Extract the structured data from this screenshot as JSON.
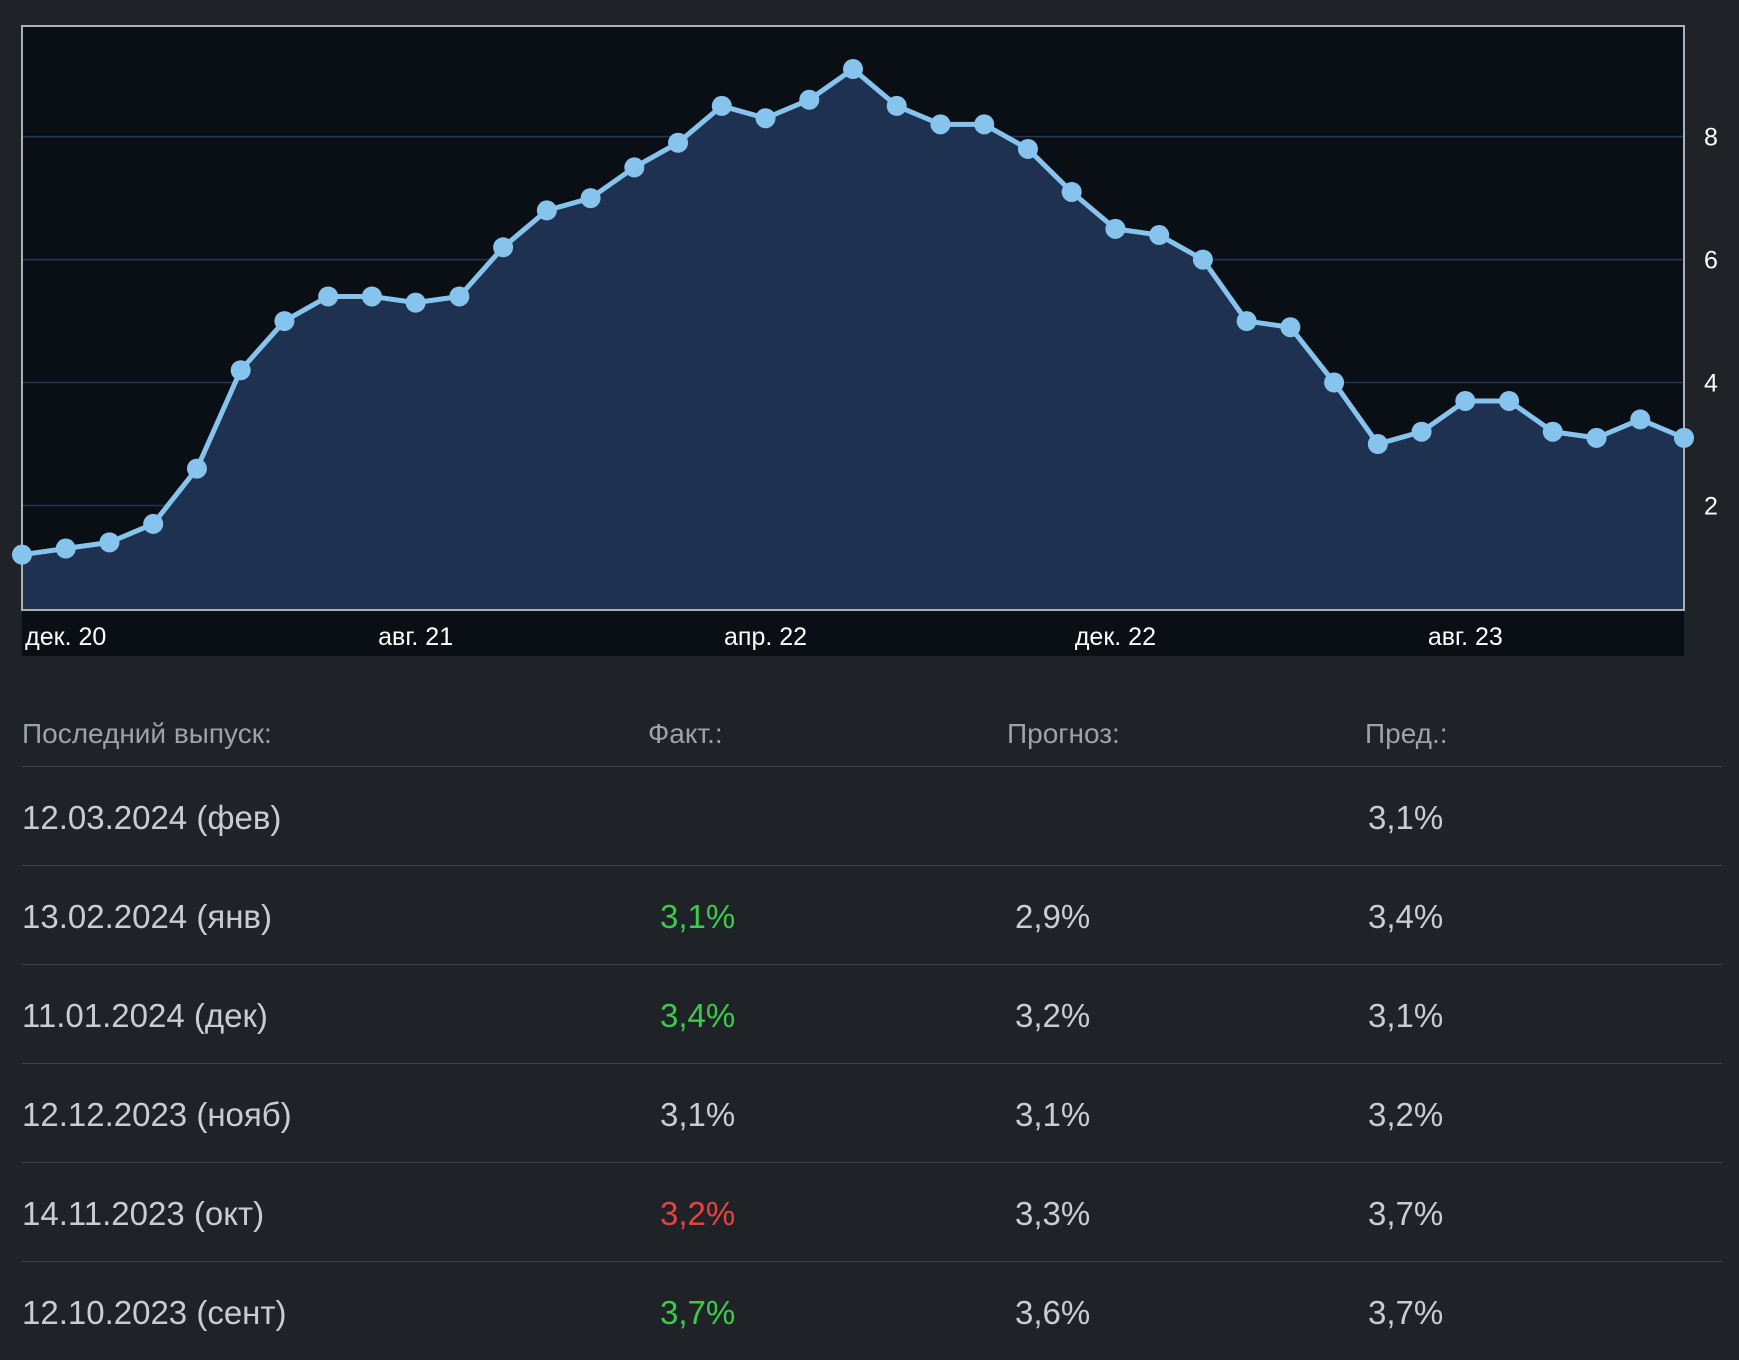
{
  "chart_data": {
    "type": "area",
    "x_tick_labels": [
      "дек. 20",
      "авг. 21",
      "апр. 22",
      "дек. 22",
      "авг. 23"
    ],
    "y_tick_labels": [
      "2",
      "4",
      "6",
      "8"
    ],
    "y_axis_side": "right",
    "grid": "horizontal",
    "ylim": [
      0.3,
      9.8
    ],
    "x_start": "2020-11",
    "x_end": "2024-01",
    "series": [
      {
        "color": "#86c4ee",
        "x": [
          "2020-11",
          "2020-12",
          "2021-01",
          "2021-02",
          "2021-03",
          "2021-04",
          "2021-05",
          "2021-06",
          "2021-07",
          "2021-08",
          "2021-09",
          "2021-10",
          "2021-11",
          "2021-12",
          "2022-01",
          "2022-02",
          "2022-03",
          "2022-04",
          "2022-05",
          "2022-06",
          "2022-07",
          "2022-08",
          "2022-09",
          "2022-10",
          "2022-11",
          "2022-12",
          "2023-01",
          "2023-02",
          "2023-03",
          "2023-04",
          "2023-05",
          "2023-06",
          "2023-07",
          "2023-08",
          "2023-09",
          "2023-10",
          "2023-11",
          "2023-12",
          "2024-01"
        ],
        "values": [
          1.2,
          1.3,
          1.4,
          1.7,
          2.6,
          4.2,
          5.0,
          5.4,
          5.4,
          5.3,
          5.4,
          6.2,
          6.8,
          7.0,
          7.5,
          7.9,
          8.5,
          8.3,
          8.6,
          9.1,
          8.5,
          8.2,
          8.2,
          7.8,
          7.1,
          6.5,
          6.4,
          6.0,
          5.0,
          4.9,
          4.0,
          3.0,
          3.2,
          3.7,
          3.7,
          3.2,
          3.1,
          3.4,
          3.1
        ]
      }
    ]
  },
  "colors": {
    "plot_bg": "#0a0f15",
    "area_fill": "#1f3150",
    "line": "#86c4ee",
    "gridline": "#1e3858",
    "positive": "#3fc94a",
    "negative": "#e8413e",
    "neutral": "#c9ccd1"
  },
  "table": {
    "headers": [
      "Последний выпуск:",
      "Факт.:",
      "Прогноз:",
      "Пред.:"
    ],
    "rows": [
      {
        "date": "12.03.2024 (фев)",
        "actual": "",
        "actual_status": "neutral",
        "forecast": "",
        "previous": "3,1%"
      },
      {
        "date": "13.02.2024 (янв)",
        "actual": "3,1%",
        "actual_status": "positive",
        "forecast": "2,9%",
        "previous": "3,4%"
      },
      {
        "date": "11.01.2024 (дек)",
        "actual": "3,4%",
        "actual_status": "positive",
        "forecast": "3,2%",
        "previous": "3,1%"
      },
      {
        "date": "12.12.2023 (нояб)",
        "actual": "3,1%",
        "actual_status": "neutral",
        "forecast": "3,1%",
        "previous": "3,2%"
      },
      {
        "date": "14.11.2023 (окт)",
        "actual": "3,2%",
        "actual_status": "negative",
        "forecast": "3,3%",
        "previous": "3,7%"
      },
      {
        "date": "12.10.2023 (сент)",
        "actual": "3,7%",
        "actual_status": "positive",
        "forecast": "3,6%",
        "previous": "3,7%"
      }
    ]
  }
}
